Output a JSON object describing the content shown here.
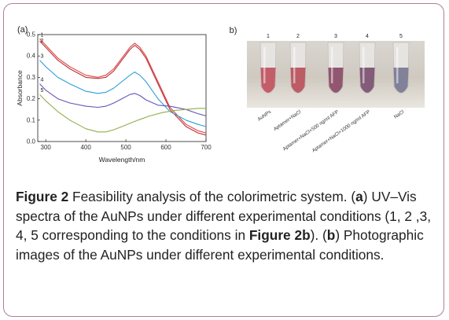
{
  "figure": {
    "panel_a_label": "(a)",
    "panel_b_label": "(b)",
    "photo": {
      "tube_numbers": [
        "1",
        "2",
        "3",
        "4",
        "5"
      ],
      "tube_labels": [
        "AuNPs",
        "Aptamer+NaCl",
        "Aptamer+NaCl+500 ng/ml AFP",
        "Aptamer+NaCl+1000 ng/ml AFP",
        "NaCl"
      ],
      "tube_colors": [
        "#c0525e",
        "#b8505a",
        "#8a4a66",
        "#7a5070",
        "#7a7894"
      ]
    }
  },
  "chart_data": {
    "type": "line",
    "xlabel": "Wavelength/nm",
    "ylabel": "Absorbance",
    "xlim": [
      280,
      700
    ],
    "ylim": [
      0,
      0.5
    ],
    "xticks": [
      "300",
      "400",
      "500",
      "600",
      "700"
    ],
    "yticks": [
      "0.0",
      "0.1",
      "0.2",
      "0.3",
      "0.4",
      "0.5"
    ],
    "series": [
      {
        "name": "1",
        "color": "#e0403c",
        "x": [
          285,
          300,
          330,
          360,
          400,
          430,
          450,
          470,
          490,
          510,
          522,
          535,
          550,
          580,
          610,
          650,
          680,
          700
        ],
        "y": [
          0.48,
          0.45,
          0.39,
          0.35,
          0.31,
          0.3,
          0.31,
          0.34,
          0.39,
          0.44,
          0.46,
          0.44,
          0.4,
          0.28,
          0.16,
          0.08,
          0.05,
          0.04
        ]
      },
      {
        "name": "2",
        "color": "#b8323a",
        "x": [
          285,
          300,
          330,
          360,
          400,
          430,
          450,
          470,
          490,
          510,
          522,
          535,
          550,
          580,
          610,
          650,
          680,
          700
        ],
        "y": [
          0.47,
          0.44,
          0.38,
          0.34,
          0.3,
          0.295,
          0.3,
          0.33,
          0.38,
          0.43,
          0.45,
          0.43,
          0.39,
          0.27,
          0.15,
          0.07,
          0.04,
          0.03
        ]
      },
      {
        "name": "3",
        "color": "#2ea0d8",
        "x": [
          285,
          300,
          330,
          360,
          400,
          430,
          450,
          470,
          490,
          510,
          522,
          535,
          550,
          580,
          610,
          650,
          680,
          700
        ],
        "y": [
          0.38,
          0.35,
          0.3,
          0.27,
          0.235,
          0.225,
          0.23,
          0.25,
          0.28,
          0.31,
          0.325,
          0.31,
          0.28,
          0.2,
          0.14,
          0.1,
          0.08,
          0.07
        ]
      },
      {
        "name": "4",
        "color": "#6a52b8",
        "x": [
          285,
          300,
          330,
          360,
          400,
          430,
          450,
          470,
          490,
          510,
          522,
          535,
          550,
          580,
          610,
          650,
          680,
          700
        ],
        "y": [
          0.27,
          0.24,
          0.2,
          0.18,
          0.165,
          0.16,
          0.165,
          0.18,
          0.2,
          0.22,
          0.225,
          0.215,
          0.195,
          0.17,
          0.165,
          0.15,
          0.13,
          0.12
        ]
      },
      {
        "name": "5",
        "color": "#8fae4a",
        "x": [
          285,
          300,
          330,
          360,
          400,
          430,
          450,
          470,
          490,
          510,
          530,
          560,
          590,
          620,
          650,
          680,
          700
        ],
        "y": [
          0.22,
          0.19,
          0.14,
          0.1,
          0.06,
          0.045,
          0.045,
          0.055,
          0.07,
          0.085,
          0.1,
          0.12,
          0.135,
          0.145,
          0.15,
          0.155,
          0.155
        ]
      }
    ]
  },
  "caption": {
    "bold_lead": "Figure 2",
    "t1": " Feasibility analysis of the colorimetric system. (",
    "a": "a",
    "t2": ") UV–Vis spectra of the AuNPs under different experimental conditions (1, 2 ,3, 4, 5 corresponding to the conditions in ",
    "ref": "Figure 2b",
    "t3": "). (",
    "b": "b",
    "t4": ") Photographic images of the AuNPs under different experimental conditions."
  }
}
